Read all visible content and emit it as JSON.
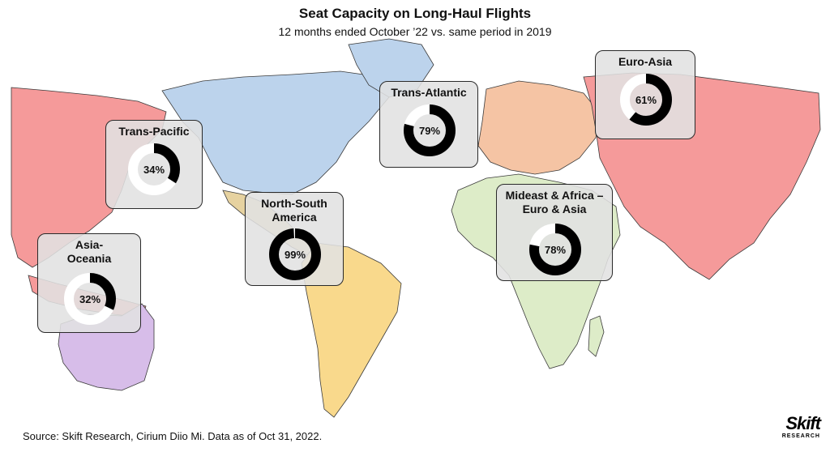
{
  "title": "Seat Capacity on Long-Haul Flights",
  "subtitle": "12 months ended October ’22 vs. same period in 2019",
  "source": "Source: Skift Research, Cirium Diio Mi. Data as of Oct 31, 2022.",
  "logo": {
    "main": "Skift",
    "sub": "RESEARCH"
  },
  "colors": {
    "americas_north": "#bcd3ec",
    "americas_south": "#f9d98c",
    "central_america": "#e6d2a0",
    "europe": "#f5c4a4",
    "asia": "#f59a9a",
    "africa": "#ddecc8",
    "oceania": "#d7bde9",
    "border": "#3a3a3a",
    "donut_fill": "#000000",
    "donut_track": "#ffffff"
  },
  "regions": [
    {
      "id": "trans-pacific",
      "label": "Trans-Pacific",
      "value": 34,
      "value_label": "34%"
    },
    {
      "id": "asia-oceania",
      "label": "Asia-Oceania",
      "value": 32,
      "value_label": "32%"
    },
    {
      "id": "north-south-america",
      "label": "North-South America",
      "value": 99,
      "value_label": "99%"
    },
    {
      "id": "trans-atlantic",
      "label": "Trans-Atlantic",
      "value": 79,
      "value_label": "79%"
    },
    {
      "id": "euro-asia",
      "label": "Euro-Asia",
      "value": 61,
      "value_label": "61%"
    },
    {
      "id": "mideast-africa-euro-asia",
      "label": "Mideast & Africa – Euro & Asia",
      "value": 78,
      "value_label": "78%"
    }
  ]
}
